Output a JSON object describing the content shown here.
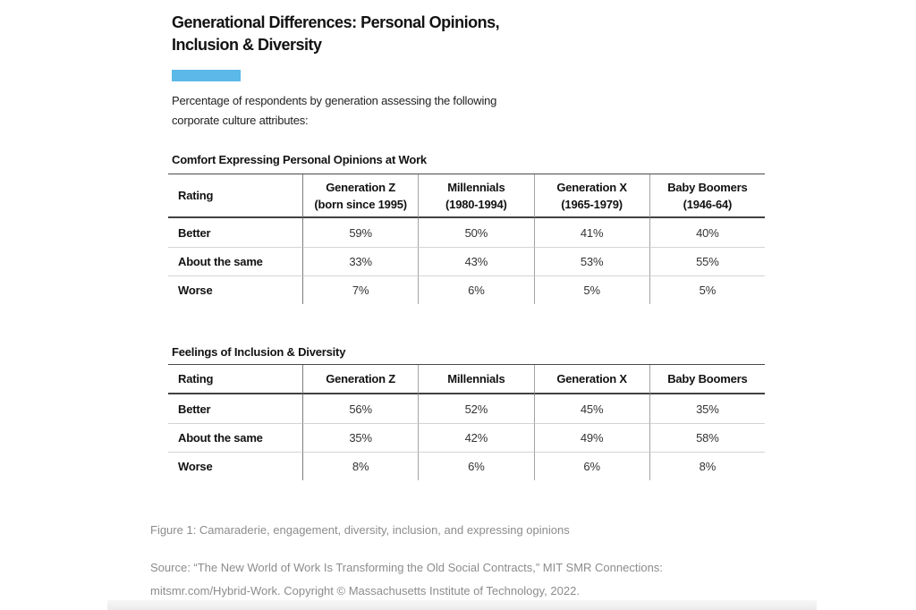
{
  "page": {
    "title_lines": [
      "Generational Differences: Personal Opinions,",
      "Inclusion & Diversity"
    ],
    "accent_color": "#5BB8E8",
    "subtitle_lines": [
      "Percentage of respondents by generation assessing the following",
      "corporate culture attributes:"
    ],
    "caption": "Figure 1: Camaraderie, engagement, diversity, inclusion, and expressing opinions",
    "source_lines": [
      "Source: “The New World of Work Is Transforming the Old Social Contracts,” MIT SMR Connections:",
      "mitsmr.com/Hybrid-Work. Copyright © Massachusetts Institute of Technology, 2022."
    ]
  },
  "chart_data": [
    {
      "type": "table",
      "title": "Comfort Expressing Personal Opinions at Work",
      "columns": [
        {
          "name": "Rating"
        },
        {
          "name": "Generation Z",
          "range": "(born since 1995)"
        },
        {
          "name": "Millennials",
          "range": "(1980-1994)"
        },
        {
          "name": "Generation X",
          "range": "(1965-1979)"
        },
        {
          "name": "Baby Boomers",
          "range": "(1946-64)"
        }
      ],
      "rows": [
        {
          "label": "Better",
          "values": [
            "59%",
            "50%",
            "41%",
            "40%"
          ]
        },
        {
          "label": "About the same",
          "values": [
            "33%",
            "43%",
            "53%",
            "55%"
          ]
        },
        {
          "label": "Worse",
          "values": [
            "7%",
            "6%",
            "5%",
            "5%"
          ]
        }
      ]
    },
    {
      "type": "table",
      "title": "Feelings of Inclusion & Diversity",
      "columns": [
        {
          "name": "Rating"
        },
        {
          "name": "Generation Z"
        },
        {
          "name": "Millennials"
        },
        {
          "name": "Generation X"
        },
        {
          "name": "Baby Boomers"
        }
      ],
      "rows": [
        {
          "label": "Better",
          "values": [
            "56%",
            "52%",
            "45%",
            "35%"
          ]
        },
        {
          "label": "About the same",
          "values": [
            "35%",
            "42%",
            "49%",
            "58%"
          ]
        },
        {
          "label": "Worse",
          "values": [
            "8%",
            "6%",
            "6%",
            "8%"
          ]
        }
      ]
    }
  ]
}
